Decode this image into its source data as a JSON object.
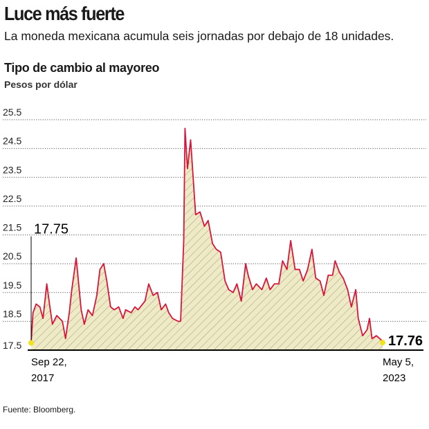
{
  "header": {
    "title": "Luce más fuerte",
    "subtitle": "La moneda mexicana acumula seis jornadas por debajo de 18 unidades."
  },
  "footer": {
    "source": "Fuente: Bloomberg."
  },
  "chart_data": {
    "type": "area",
    "title": "Tipo de cambio al mayoreo",
    "ylabel": "Pesos por dólar",
    "xlabel": "",
    "ylim": [
      17.5,
      25.5
    ],
    "xlim": [
      2017.72,
      2023.34
    ],
    "yticks": [
      "25.5",
      "24.5",
      "23.5",
      "22.5",
      "21.5",
      "20.5",
      "19.5",
      "18.5",
      "17.5"
    ],
    "xtick_labels": [
      {
        "line1": "Sep 22,",
        "line2": "2017"
      },
      {
        "line1": "May 5,",
        "line2": "2023"
      }
    ],
    "annotations": {
      "start": "17.75",
      "end": "17.76"
    },
    "grid": true,
    "colors": {
      "line": "#d8143a",
      "fill": "#efeac6",
      "hatch": "#8a8770",
      "marker": "#f3e21a"
    },
    "x": [
      2017.72,
      2017.75,
      2017.8,
      2017.86,
      2017.91,
      2017.97,
      2018.02,
      2018.06,
      2018.13,
      2018.22,
      2018.27,
      2018.33,
      2018.37,
      2018.44,
      2018.48,
      2018.52,
      2018.57,
      2018.63,
      2018.7,
      2018.77,
      2018.82,
      2018.88,
      2018.93,
      2018.99,
      2019.05,
      2019.12,
      2019.19,
      2019.23,
      2019.32,
      2019.38,
      2019.43,
      2019.54,
      2019.6,
      2019.67,
      2019.74,
      2019.8,
      2019.87,
      2019.92,
      2019.98,
      2020.07,
      2020.11,
      2020.16,
      2020.18,
      2020.22,
      2020.27,
      2020.31,
      2020.35,
      2020.42,
      2020.49,
      2020.55,
      2020.62,
      2020.68,
      2020.75,
      2020.82,
      2020.88,
      2020.95,
      2021.01,
      2021.08,
      2021.15,
      2021.19,
      2021.26,
      2021.32,
      2021.41,
      2021.48,
      2021.54,
      2021.61,
      2021.68,
      2021.74,
      2021.81,
      2021.87,
      2021.94,
      2022.01,
      2022.07,
      2022.14,
      2022.21,
      2022.27,
      2022.34,
      2022.4,
      2022.47,
      2022.54,
      2022.58,
      2022.65,
      2022.71,
      2022.78,
      2022.84,
      2022.91,
      2022.95,
      2023.02,
      2023.09,
      2023.13,
      2023.17,
      2023.24,
      2023.32,
      2023.34
    ],
    "values": [
      17.75,
      18.8,
      19.1,
      19.0,
      18.6,
      19.8,
      19.0,
      18.4,
      18.7,
      18.5,
      17.9,
      18.8,
      19.6,
      20.7,
      19.8,
      18.9,
      18.4,
      18.9,
      18.7,
      19.4,
      20.3,
      20.5,
      19.9,
      19.0,
      18.9,
      19.0,
      18.6,
      18.9,
      18.8,
      19.0,
      18.9,
      19.2,
      19.8,
      19.4,
      19.5,
      18.9,
      19.1,
      18.8,
      18.6,
      18.5,
      18.5,
      21.3,
      25.2,
      23.8,
      24.8,
      23.5,
      22.2,
      22.3,
      21.8,
      22.0,
      21.2,
      21.0,
      20.9,
      19.9,
      19.6,
      19.5,
      19.8,
      19.2,
      20.5,
      20.1,
      19.6,
      19.8,
      19.6,
      20.0,
      19.6,
      19.8,
      19.8,
      20.6,
      20.3,
      21.3,
      20.3,
      20.3,
      19.9,
      20.3,
      21.0,
      20.0,
      19.9,
      19.4,
      20.1,
      20.1,
      20.6,
      20.2,
      20.0,
      19.6,
      19.0,
      19.6,
      18.6,
      18.0,
      18.2,
      18.6,
      17.9,
      18.0,
      17.85,
      17.76
    ]
  }
}
